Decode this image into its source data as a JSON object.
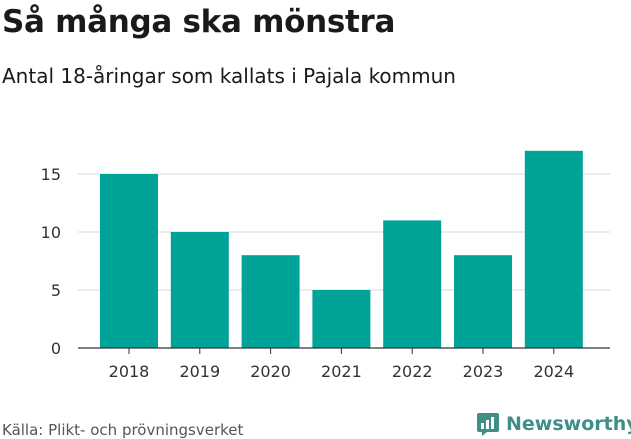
{
  "header": {
    "title": "Så många ska mönstra",
    "subtitle": "Antal 18-åringar som kallats i Pajala kommun"
  },
  "footer": {
    "source": "Källa: Plikt- och prövningsverket",
    "brand": "Newsworthy",
    "brand_icon": "newsworthy-logo-icon"
  },
  "colors": {
    "bar": "#00a398",
    "grid": "#d9d9d9",
    "axis": "#333333",
    "brand": "#3f8f86"
  },
  "chart_data": {
    "type": "bar",
    "categories": [
      "2018",
      "2019",
      "2020",
      "2021",
      "2022",
      "2023",
      "2024"
    ],
    "values": [
      15,
      10,
      8,
      5,
      11,
      8,
      17
    ],
    "yticks": [
      0,
      5,
      10,
      15
    ],
    "ylim": [
      0,
      17
    ],
    "grid": true,
    "title": "Så många ska mönstra",
    "subtitle": "Antal 18-åringar som kallats i Pajala kommun"
  }
}
